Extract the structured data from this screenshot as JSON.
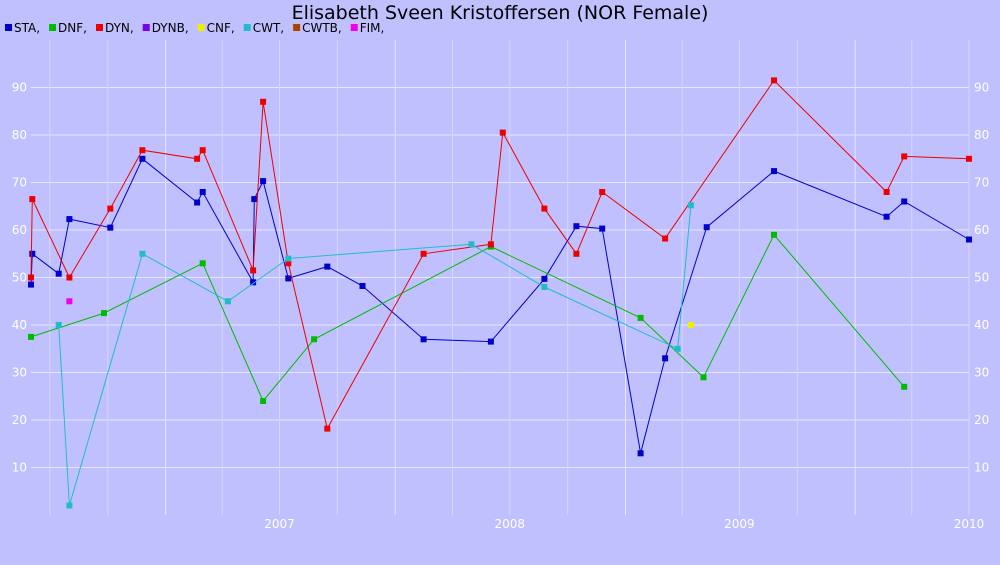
{
  "chart_data": {
    "type": "line",
    "title": "Elisabeth Sveen Kristoffersen (NOR Female)",
    "xlabel": "",
    "ylabel": "",
    "x_ticks": [
      "2007",
      "2008",
      "2009",
      "2010"
    ],
    "y_ticks": [
      "10",
      "20",
      "30",
      "40",
      "50",
      "60",
      "70",
      "80",
      "90"
    ],
    "ylim": [
      0,
      100
    ],
    "xlim": [
      "2006-06-01",
      "2010-07-01"
    ],
    "grid": true,
    "legend_position": "top-left",
    "series": [
      {
        "name": "STA,",
        "color": "#0000cc",
        "points": [
          [
            "2006-06-01",
            48.5
          ],
          [
            "2006-06-03",
            55.0
          ],
          [
            "2006-07-15",
            50.8
          ],
          [
            "2006-08-01",
            62.3
          ],
          [
            "2006-10-05",
            60.5
          ],
          [
            "2006-11-25",
            75.0
          ],
          [
            "2007-02-20",
            65.8
          ],
          [
            "2007-03-01",
            68.0
          ],
          [
            "2007-05-20",
            49.0
          ],
          [
            "2007-05-22",
            66.5
          ],
          [
            "2007-06-05",
            70.3
          ],
          [
            "2007-07-15",
            49.8
          ],
          [
            "2007-09-15",
            52.3
          ],
          [
            "2007-11-10",
            48.2
          ],
          [
            "2008-02-15",
            37.0
          ],
          [
            "2008-06-01",
            36.5
          ],
          [
            "2008-08-25",
            49.7
          ],
          [
            "2008-10-15",
            60.8
          ],
          [
            "2008-11-25",
            60.3
          ],
          [
            "2009-01-25",
            13.0
          ],
          [
            "2009-03-05",
            33.0
          ],
          [
            "2009-05-10",
            60.6
          ],
          [
            "2009-08-25",
            72.4
          ],
          [
            "2010-02-20",
            62.8
          ],
          [
            "2010-03-20",
            66.0
          ],
          [
            "2010-07-01",
            58.0
          ]
        ]
      },
      {
        "name": "DNF,",
        "color": "#00bb00",
        "points": [
          [
            "2006-06-01",
            37.5
          ],
          [
            "2006-09-25",
            42.5
          ],
          [
            "2007-03-01",
            53.0
          ],
          [
            "2007-06-05",
            24.0
          ],
          [
            "2007-08-25",
            37.0
          ],
          [
            "2008-06-01",
            56.5
          ],
          [
            "2009-01-25",
            41.5
          ],
          [
            "2009-05-05",
            29.0
          ],
          [
            "2009-08-25",
            59.0
          ],
          [
            "2010-03-20",
            27.0
          ]
        ]
      },
      {
        "name": "DYN,",
        "color": "#ee0000",
        "points": [
          [
            "2006-06-01",
            50.0
          ],
          [
            "2006-06-03",
            66.5
          ],
          [
            "2006-08-01",
            50.0
          ],
          [
            "2006-10-05",
            64.5
          ],
          [
            "2006-11-25",
            76.8
          ],
          [
            "2007-02-20",
            75.0
          ],
          [
            "2007-03-01",
            76.8
          ],
          [
            "2007-05-20",
            51.5
          ],
          [
            "2007-06-05",
            87.0
          ],
          [
            "2007-07-15",
            53.0
          ],
          [
            "2007-09-15",
            18.2
          ],
          [
            "2008-02-15",
            55.0
          ],
          [
            "2008-06-01",
            57.0
          ],
          [
            "2008-06-20",
            80.5
          ],
          [
            "2008-08-25",
            64.5
          ],
          [
            "2008-10-15",
            55.0
          ],
          [
            "2008-11-25",
            68.0
          ],
          [
            "2009-03-05",
            58.2
          ],
          [
            "2009-08-25",
            91.5
          ],
          [
            "2010-02-20",
            68.0
          ],
          [
            "2010-03-20",
            75.5
          ],
          [
            "2010-07-01",
            75.0
          ]
        ]
      },
      {
        "name": "DYNB,",
        "color": "#7700ee",
        "points": []
      },
      {
        "name": "CNF,",
        "color": "#eeee00",
        "points": [
          [
            "2009-04-15",
            40.0
          ]
        ]
      },
      {
        "name": "CWT,",
        "color": "#22bbcc",
        "points": [
          [
            "2006-07-15",
            40.0
          ],
          [
            "2006-08-01",
            2.0
          ],
          [
            "2006-11-25",
            55.0
          ],
          [
            "2007-04-10",
            45.0
          ],
          [
            "2007-07-15",
            54.0
          ],
          [
            "2008-05-01",
            57.0
          ],
          [
            "2008-08-25",
            48.0
          ],
          [
            "2009-03-25",
            35.0
          ],
          [
            "2009-04-15",
            65.2
          ]
        ]
      },
      {
        "name": "CWTB,",
        "color": "#aa4400",
        "points": []
      },
      {
        "name": "FIM,",
        "color": "#ee00ee",
        "points": [
          [
            "2006-08-01",
            45.0
          ]
        ]
      }
    ]
  }
}
